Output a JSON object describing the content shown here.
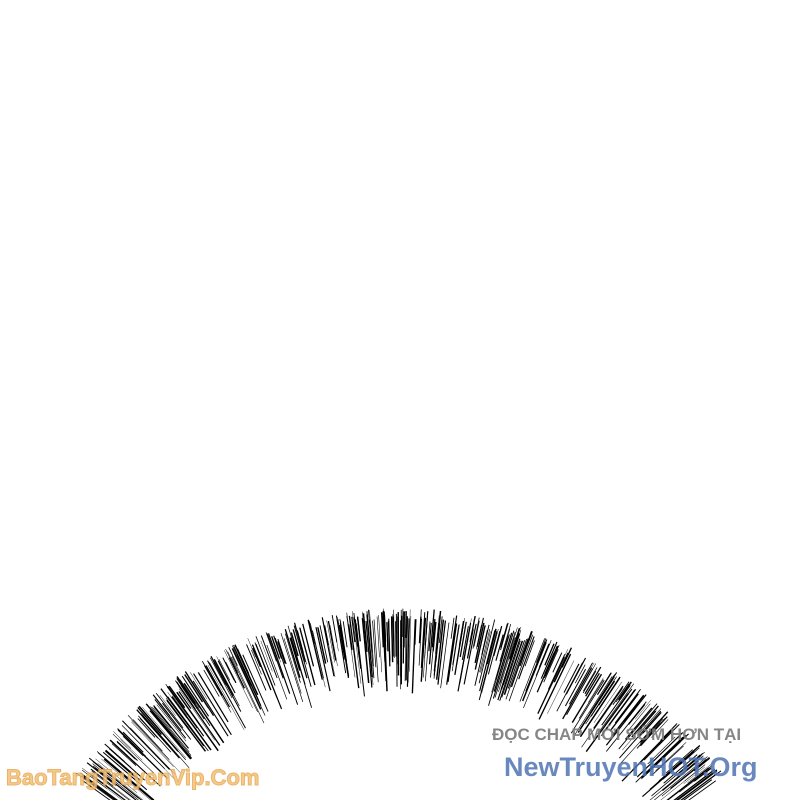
{
  "panel": {
    "description_free": true,
    "speed_lines_color": "#000000"
  },
  "watermarks": {
    "top_right_line": "ĐỌC CHAP MỚI SỚM HƠN TẠI",
    "top_right_site": "NewTruyenHOT.Org",
    "bottom_left_site": "BaoTangTruyenVip.Com",
    "colors": {
      "gray": "#7a7a7a",
      "blue": "#4f74b3",
      "orange": "#f3c27a"
    }
  }
}
